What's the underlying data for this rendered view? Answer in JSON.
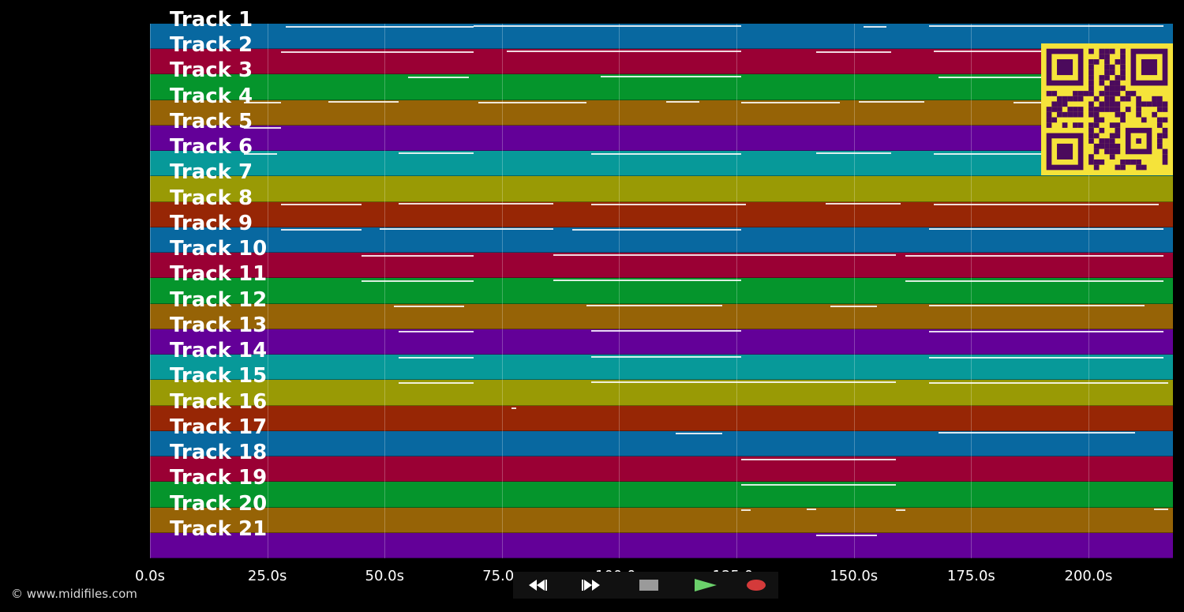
{
  "tracks": [
    "Track 1",
    "Track 2",
    "Track 3",
    "Track 4",
    "Track 5",
    "Track 6",
    "Track 7",
    "Track 8",
    "Track 9",
    "Track 10",
    "Track 11",
    "Track 12",
    "Track 13",
    "Track 14",
    "Track 15",
    "Track 16",
    "Track 17",
    "Track 18",
    "Track 19",
    "Track 20",
    "Track 21"
  ],
  "lane_colors": [
    "#0868a0",
    "#9a0034",
    "#05952c",
    "#966306",
    "#630098",
    "#079999",
    "#999a05",
    "#972605"
  ],
  "x_axis": {
    "ticks": [
      "0.0s",
      "25.0s",
      "50.0s",
      "75.0s",
      "100.0s",
      "125.0s",
      "150.0s",
      "175.0s",
      "200.0s"
    ],
    "tick_values": [
      0,
      25,
      50,
      75,
      100,
      125,
      150,
      175,
      200
    ],
    "max_seconds": 218
  },
  "footer": {
    "copyright": "© www.midifiles.com"
  },
  "controls": [
    {
      "name": "rewind-button",
      "icon": "rewind-icon",
      "color": "#1a1a1a"
    },
    {
      "name": "fast-forward-button",
      "icon": "fast-forward-icon",
      "color": "#1a1a1a"
    },
    {
      "name": "stop-button",
      "icon": "stop-icon",
      "color": "#4a4a4a"
    },
    {
      "name": "play-button",
      "icon": "play-icon",
      "color": "#1f5f22"
    },
    {
      "name": "record-button",
      "icon": "record-icon",
      "color": "#5a1414"
    }
  ],
  "qr_code": {
    "icon": "qr-code-icon",
    "fg": "#4b0a5c",
    "bg": "#f5e33a"
  },
  "notes": [
    {
      "track": 1,
      "segments": [
        [
          29,
          69
        ],
        [
          69,
          126
        ],
        [
          152,
          157
        ],
        [
          166,
          216
        ]
      ]
    },
    {
      "track": 2,
      "segments": [
        [
          28,
          69
        ],
        [
          76,
          126
        ],
        [
          142,
          158
        ],
        [
          167,
          215
        ]
      ]
    },
    {
      "track": 3,
      "segments": [
        [
          55,
          68
        ],
        [
          96,
          126
        ],
        [
          168,
          190
        ]
      ]
    },
    {
      "track": 4,
      "segments": [
        [
          20,
          28
        ],
        [
          38,
          53
        ],
        [
          70,
          93
        ],
        [
          110,
          117
        ],
        [
          126,
          147
        ],
        [
          151,
          165
        ],
        [
          184,
          198
        ]
      ]
    },
    {
      "track": 5,
      "segments": [
        [
          20,
          28
        ]
      ]
    },
    {
      "track": 6,
      "segments": [
        [
          20,
          27
        ],
        [
          53,
          69
        ],
        [
          94,
          126
        ],
        [
          142,
          158
        ],
        [
          167,
          190
        ]
      ]
    },
    {
      "track": 8,
      "segments": [
        [
          28,
          45
        ],
        [
          53,
          86
        ],
        [
          94,
          127
        ],
        [
          144,
          160
        ],
        [
          167,
          215
        ]
      ]
    },
    {
      "track": 9,
      "segments": [
        [
          28,
          45
        ],
        [
          49,
          86
        ],
        [
          90,
          126
        ],
        [
          166,
          216
        ]
      ]
    },
    {
      "track": 10,
      "segments": [
        [
          45,
          69
        ],
        [
          86,
          159
        ],
        [
          161,
          216
        ]
      ]
    },
    {
      "track": 11,
      "segments": [
        [
          45,
          69
        ],
        [
          86,
          126
        ],
        [
          161,
          216
        ]
      ]
    },
    {
      "track": 12,
      "segments": [
        [
          52,
          67
        ],
        [
          93,
          122
        ],
        [
          145,
          155
        ],
        [
          166,
          212
        ]
      ]
    },
    {
      "track": 13,
      "segments": [
        [
          53,
          69
        ],
        [
          94,
          126
        ],
        [
          166,
          216
        ]
      ]
    },
    {
      "track": 14,
      "segments": [
        [
          53,
          69
        ],
        [
          94,
          126
        ],
        [
          166,
          216
        ]
      ]
    },
    {
      "track": 15,
      "segments": [
        [
          53,
          69
        ],
        [
          94,
          159
        ],
        [
          166,
          217
        ]
      ]
    },
    {
      "track": 16,
      "segments": [
        [
          77,
          78
        ]
      ]
    },
    {
      "track": 17,
      "segments": [
        [
          112,
          122
        ],
        [
          168,
          210
        ]
      ]
    },
    {
      "track": 18,
      "segments": [
        [
          126,
          159
        ]
      ]
    },
    {
      "track": 19,
      "segments": [
        [
          126,
          159
        ]
      ]
    },
    {
      "track": 20,
      "segments": [
        [
          126,
          128
        ],
        [
          140,
          142
        ],
        [
          159,
          161
        ],
        [
          214,
          217
        ]
      ]
    },
    {
      "track": 21,
      "segments": [
        [
          142,
          155
        ]
      ]
    }
  ]
}
